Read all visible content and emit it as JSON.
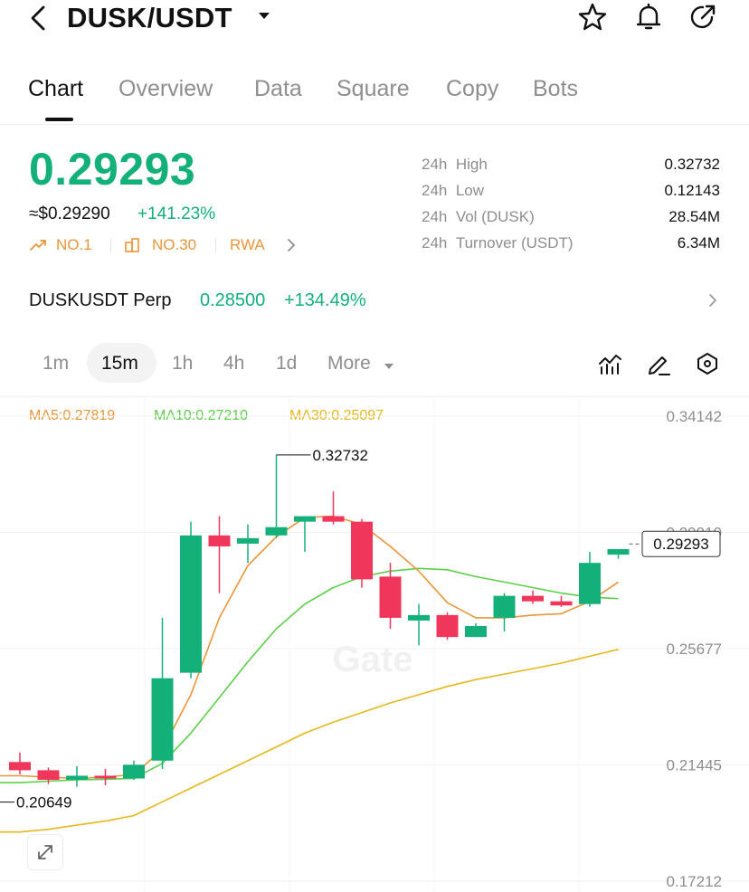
{
  "header": {
    "title": "DUSK/USDT"
  },
  "tabs": [
    {
      "label": "Chart",
      "active": true
    },
    {
      "label": "Overview"
    },
    {
      "label": "Data"
    },
    {
      "label": "Square"
    },
    {
      "label": "Copy"
    },
    {
      "label": "Bots"
    }
  ],
  "ticker": {
    "price": "0.29293",
    "usd_price": "≈$0.29290",
    "change": "+141.23%",
    "tags": [
      "NO.1",
      "NO.30",
      "RWA"
    ]
  },
  "stats": [
    {
      "period": "24h",
      "label": "High",
      "value": "0.32732"
    },
    {
      "period": "24h",
      "label": "Low",
      "value": "0.12143"
    },
    {
      "period": "24h",
      "label": "Vol (DUSK)",
      "value": "28.54M"
    },
    {
      "period": "24h",
      "label": "Turnover (USDT)",
      "value": "6.34M"
    }
  ],
  "perp": {
    "name": "DUSKUSDT Perp",
    "price": "0.28500",
    "change": "+134.49%"
  },
  "timeframes": [
    {
      "label": "1m"
    },
    {
      "label": "15m",
      "active": true
    },
    {
      "label": "1h"
    },
    {
      "label": "4h"
    },
    {
      "label": "1d"
    },
    {
      "label": "More"
    }
  ],
  "indicators": {
    "ma5": "MA5:0.27819",
    "ma10": "MA10:0.27210",
    "ma30": "MA30:0.25097"
  },
  "colors": {
    "up": "#14b07a",
    "down": "#f0365a",
    "ma5": "#e8963a",
    "ma10": "#5ccf4a",
    "ma30": "#e6b81c"
  },
  "chart_data": {
    "type": "candlestick",
    "y_ticks": [
      "0.34142",
      "0.29910",
      "0.25677",
      "0.21445",
      "0.17212"
    ],
    "ylim": [
      0.17212,
      0.34142
    ],
    "current_price": "0.29293",
    "high_marker": "0.32732",
    "low_marker": "0.20649",
    "candles": [
      {
        "o": 0.2155,
        "h": 0.219,
        "l": 0.211,
        "c": 0.2125
      },
      {
        "o": 0.2125,
        "h": 0.2135,
        "l": 0.2075,
        "c": 0.209
      },
      {
        "o": 0.209,
        "h": 0.214,
        "l": 0.2065,
        "c": 0.2105
      },
      {
        "o": 0.2105,
        "h": 0.213,
        "l": 0.207,
        "c": 0.2095
      },
      {
        "o": 0.2095,
        "h": 0.216,
        "l": 0.209,
        "c": 0.2145
      },
      {
        "o": 0.216,
        "h": 0.268,
        "l": 0.213,
        "c": 0.246
      },
      {
        "o": 0.248,
        "h": 0.303,
        "l": 0.246,
        "c": 0.298
      },
      {
        "o": 0.298,
        "h": 0.305,
        "l": 0.277,
        "c": 0.294
      },
      {
        "o": 0.295,
        "h": 0.302,
        "l": 0.288,
        "c": 0.297
      },
      {
        "o": 0.298,
        "h": 0.3273,
        "l": 0.297,
        "c": 0.301
      },
      {
        "o": 0.303,
        "h": 0.305,
        "l": 0.292,
        "c": 0.305
      },
      {
        "o": 0.305,
        "h": 0.314,
        "l": 0.302,
        "c": 0.303
      },
      {
        "o": 0.303,
        "h": 0.304,
        "l": 0.279,
        "c": 0.282
      },
      {
        "o": 0.283,
        "h": 0.288,
        "l": 0.264,
        "c": 0.268
      },
      {
        "o": 0.267,
        "h": 0.273,
        "l": 0.258,
        "c": 0.269
      },
      {
        "o": 0.269,
        "h": 0.27,
        "l": 0.26,
        "c": 0.261
      },
      {
        "o": 0.261,
        "h": 0.266,
        "l": 0.261,
        "c": 0.265
      },
      {
        "o": 0.268,
        "h": 0.277,
        "l": 0.263,
        "c": 0.276
      },
      {
        "o": 0.276,
        "h": 0.278,
        "l": 0.273,
        "c": 0.274
      },
      {
        "o": 0.274,
        "h": 0.276,
        "l": 0.272,
        "c": 0.2725
      },
      {
        "o": 0.273,
        "h": 0.292,
        "l": 0.272,
        "c": 0.288
      },
      {
        "o": 0.291,
        "h": 0.293,
        "l": 0.2895,
        "c": 0.293
      }
    ],
    "ma5_values": [
      0.2105,
      0.21,
      0.2095,
      0.21,
      0.211,
      0.22,
      0.24,
      0.268,
      0.287,
      0.2975,
      0.3045,
      0.305,
      0.302,
      0.294,
      0.285,
      0.2735,
      0.268,
      0.268,
      0.269,
      0.2695,
      0.274,
      0.281
    ],
    "ma10_values": [
      0.208,
      0.2085,
      0.209,
      0.2092,
      0.2095,
      0.215,
      0.226,
      0.239,
      0.252,
      0.264,
      0.273,
      0.279,
      0.283,
      0.285,
      0.286,
      0.2855,
      0.283,
      0.281,
      0.279,
      0.277,
      0.2755,
      0.275
    ],
    "ma30_values": [
      0.19,
      0.191,
      0.1925,
      0.194,
      0.196,
      0.201,
      0.206,
      0.211,
      0.216,
      0.221,
      0.226,
      0.23,
      0.2335,
      0.237,
      0.24,
      0.243,
      0.2455,
      0.2475,
      0.2495,
      0.2515,
      0.254,
      0.2565
    ]
  }
}
